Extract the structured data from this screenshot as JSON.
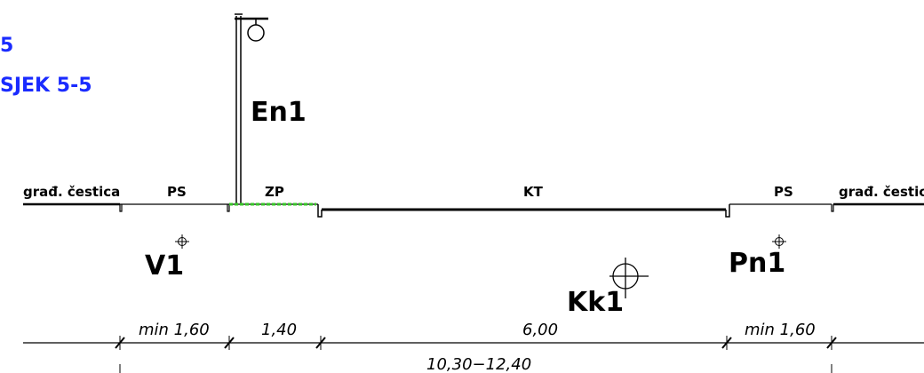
{
  "title": {
    "line1": "5",
    "line2": "SJEK 5-5"
  },
  "segments": [
    {
      "label": "građ. čestica"
    },
    {
      "label": "PS"
    },
    {
      "label": "ZP"
    },
    {
      "label": "KT"
    },
    {
      "label": "PS"
    },
    {
      "label": "građ. čestica"
    }
  ],
  "tags": {
    "pole": "En1",
    "left_sidewalk": "V1",
    "right_sidewalk": "Pn1",
    "road": "Kk1"
  },
  "dimensions": {
    "row1": [
      "min  1,60",
      "1,40",
      "6,00",
      "min  1,60"
    ],
    "row2": "10,30−12,40"
  },
  "colors": {
    "title": "#1a2bff",
    "green_strip": "#38c42a",
    "lines": "#000000"
  }
}
